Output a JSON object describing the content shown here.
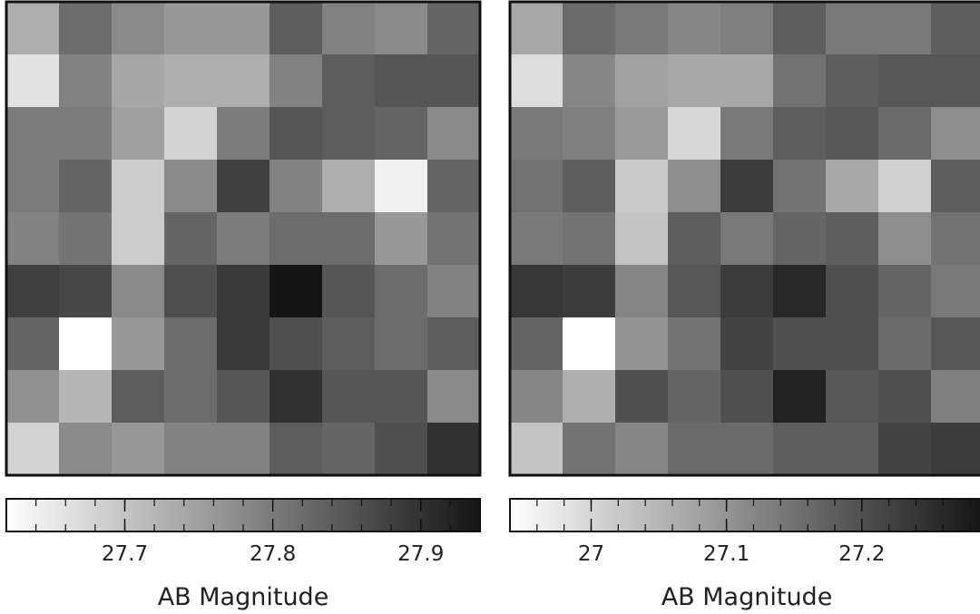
{
  "chart_data": [
    {
      "type": "heatmap",
      "grid_size": [
        9,
        9
      ],
      "colormap": "white-to-black",
      "cbar_range": [
        27.62,
        27.94
      ],
      "cbar_ticks": [
        27.7,
        27.8,
        27.9
      ],
      "cbar_tick_labels": [
        "27.7",
        "27.8",
        "27.9"
      ],
      "cbar_label": "AB Magnitude",
      "values": [
        [
          27.73,
          27.82,
          27.78,
          27.76,
          27.76,
          27.84,
          27.79,
          27.78,
          27.83
        ],
        [
          27.66,
          27.79,
          27.74,
          27.73,
          27.73,
          27.79,
          27.84,
          27.85,
          27.85
        ],
        [
          27.8,
          27.8,
          27.75,
          27.68,
          27.8,
          27.85,
          27.84,
          27.83,
          27.78
        ],
        [
          27.8,
          27.83,
          27.69,
          27.78,
          27.88,
          27.79,
          27.73,
          27.64,
          27.83
        ],
        [
          27.79,
          27.81,
          27.69,
          27.83,
          27.8,
          27.82,
          27.82,
          27.76,
          27.81
        ],
        [
          27.88,
          27.87,
          27.78,
          27.86,
          27.89,
          27.94,
          27.85,
          27.82,
          27.79
        ],
        [
          27.83,
          27.62,
          27.76,
          27.82,
          27.89,
          27.86,
          27.84,
          27.82,
          27.84
        ],
        [
          27.77,
          27.72,
          27.84,
          27.82,
          27.85,
          27.9,
          27.85,
          27.85,
          27.78
        ],
        [
          27.68,
          27.78,
          27.76,
          27.79,
          27.79,
          27.84,
          27.83,
          27.86,
          27.9
        ]
      ]
    },
    {
      "type": "heatmap",
      "grid_size": [
        9,
        9
      ],
      "colormap": "white-to-black",
      "cbar_range": [
        26.94,
        27.29
      ],
      "cbar_ticks": [
        27.0,
        27.1,
        27.2
      ],
      "cbar_tick_labels": [
        "27",
        "27.1",
        "27.2"
      ],
      "cbar_label": "AB Magnitude",
      "values": [
        [
          27.07,
          27.16,
          27.14,
          27.12,
          27.13,
          27.18,
          27.14,
          27.14,
          27.18
        ],
        [
          26.99,
          27.12,
          27.08,
          27.07,
          27.07,
          27.15,
          27.18,
          27.19,
          27.19
        ],
        [
          27.14,
          27.13,
          27.09,
          27.0,
          27.14,
          27.18,
          27.19,
          27.16,
          27.11
        ],
        [
          27.15,
          27.18,
          27.02,
          27.11,
          27.23,
          27.15,
          27.07,
          27.01,
          27.18
        ],
        [
          27.14,
          27.15,
          27.03,
          27.18,
          27.14,
          27.17,
          27.18,
          27.11,
          27.15
        ],
        [
          27.24,
          27.23,
          27.12,
          27.19,
          27.23,
          27.26,
          27.2,
          27.17,
          27.14
        ],
        [
          27.17,
          26.94,
          27.1,
          27.15,
          27.22,
          27.2,
          27.2,
          27.16,
          27.19
        ],
        [
          27.12,
          27.06,
          27.2,
          27.17,
          27.2,
          27.27,
          27.19,
          27.2,
          27.13
        ],
        [
          27.03,
          27.15,
          27.12,
          27.16,
          27.16,
          27.18,
          27.18,
          27.22,
          27.23
        ]
      ]
    }
  ]
}
